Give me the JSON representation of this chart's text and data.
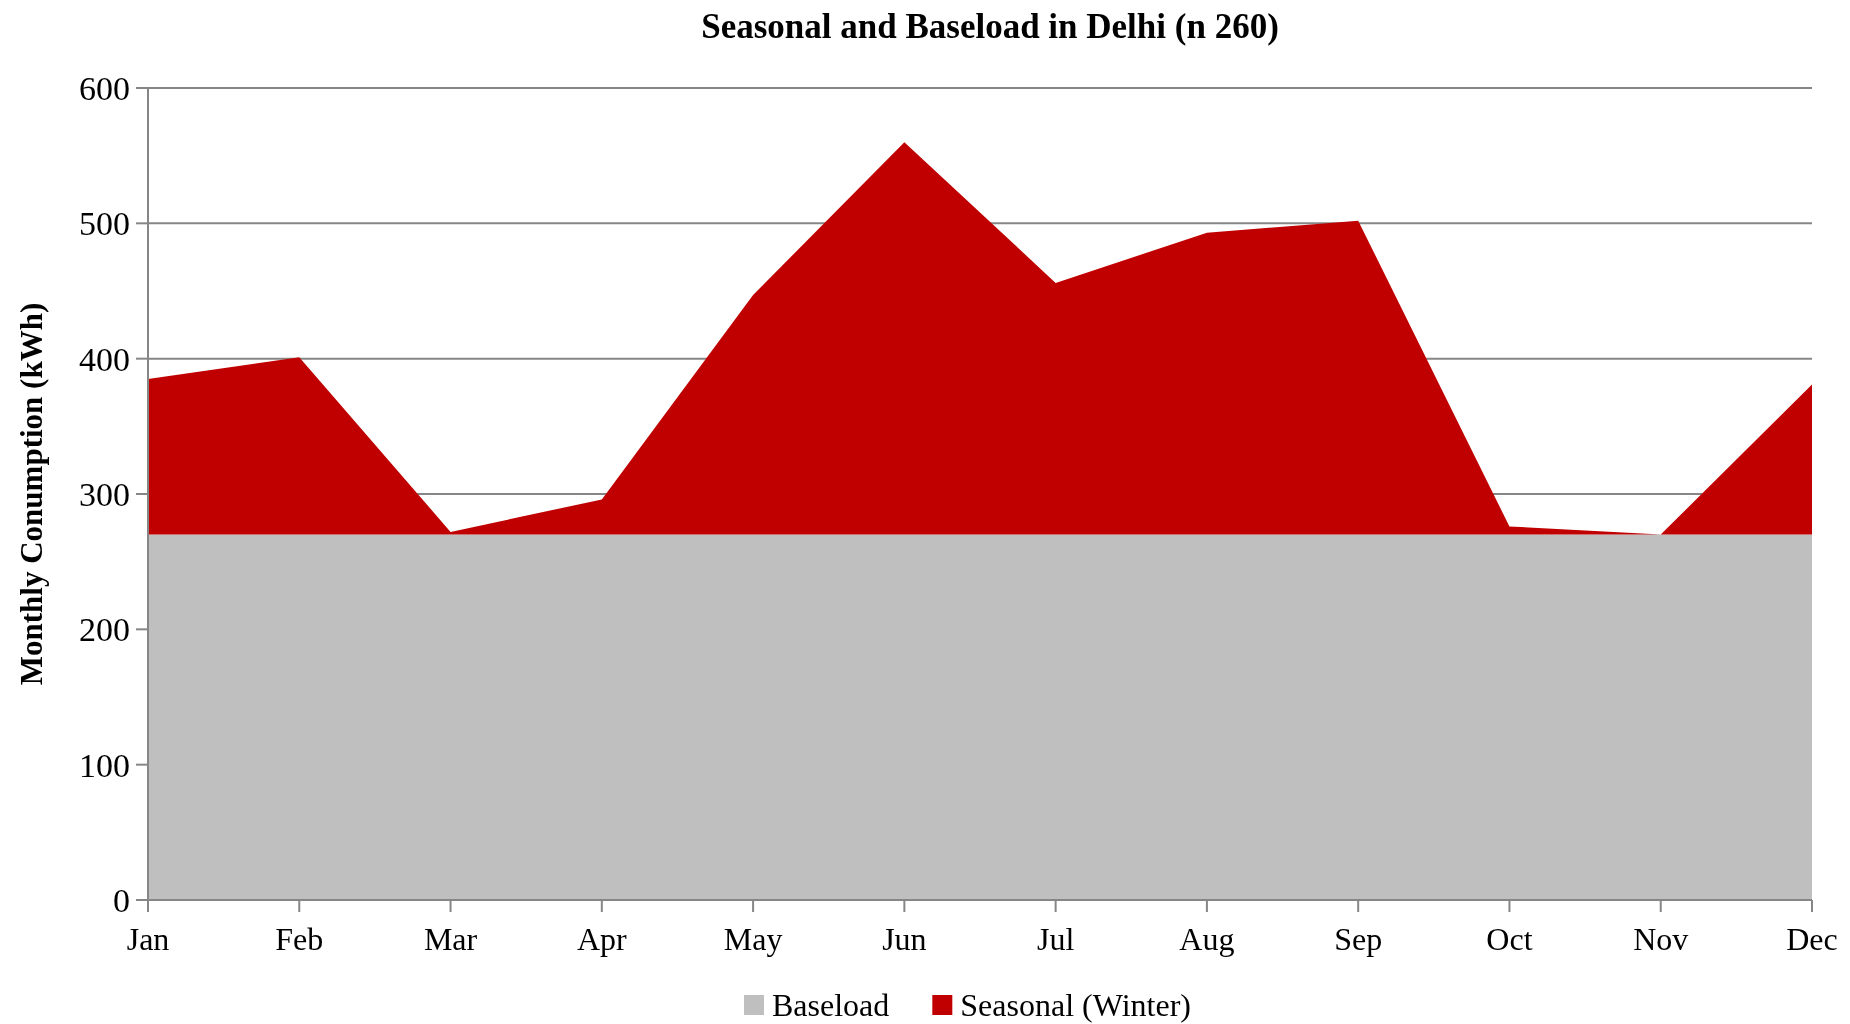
{
  "chart_data": {
    "type": "area",
    "title": "Seasonal and Baseload in Delhi (n 260)",
    "ylabel": "Monthly Conumption (kWh)",
    "categories": [
      "Jan",
      "Feb",
      "Mar",
      "Apr",
      "May",
      "Jun",
      "Jul",
      "Aug",
      "Sep",
      "Oct",
      "Nov",
      "Dec"
    ],
    "series": [
      {
        "name": "Baseload",
        "color": "#bfbfbf",
        "values": [
          270,
          270,
          270,
          270,
          270,
          270,
          270,
          270,
          270,
          270,
          270,
          270
        ]
      },
      {
        "name": "Seasonal (Winter)",
        "color": "#c00000",
        "values": [
          115,
          131,
          2,
          26,
          177,
          290,
          186,
          223,
          232,
          6,
          0,
          111
        ]
      }
    ],
    "stacked": true,
    "ylim": [
      0,
      600
    ],
    "yticks": [
      0,
      100,
      200,
      300,
      400,
      500,
      600
    ],
    "grid": "y",
    "legend": "bottom"
  }
}
